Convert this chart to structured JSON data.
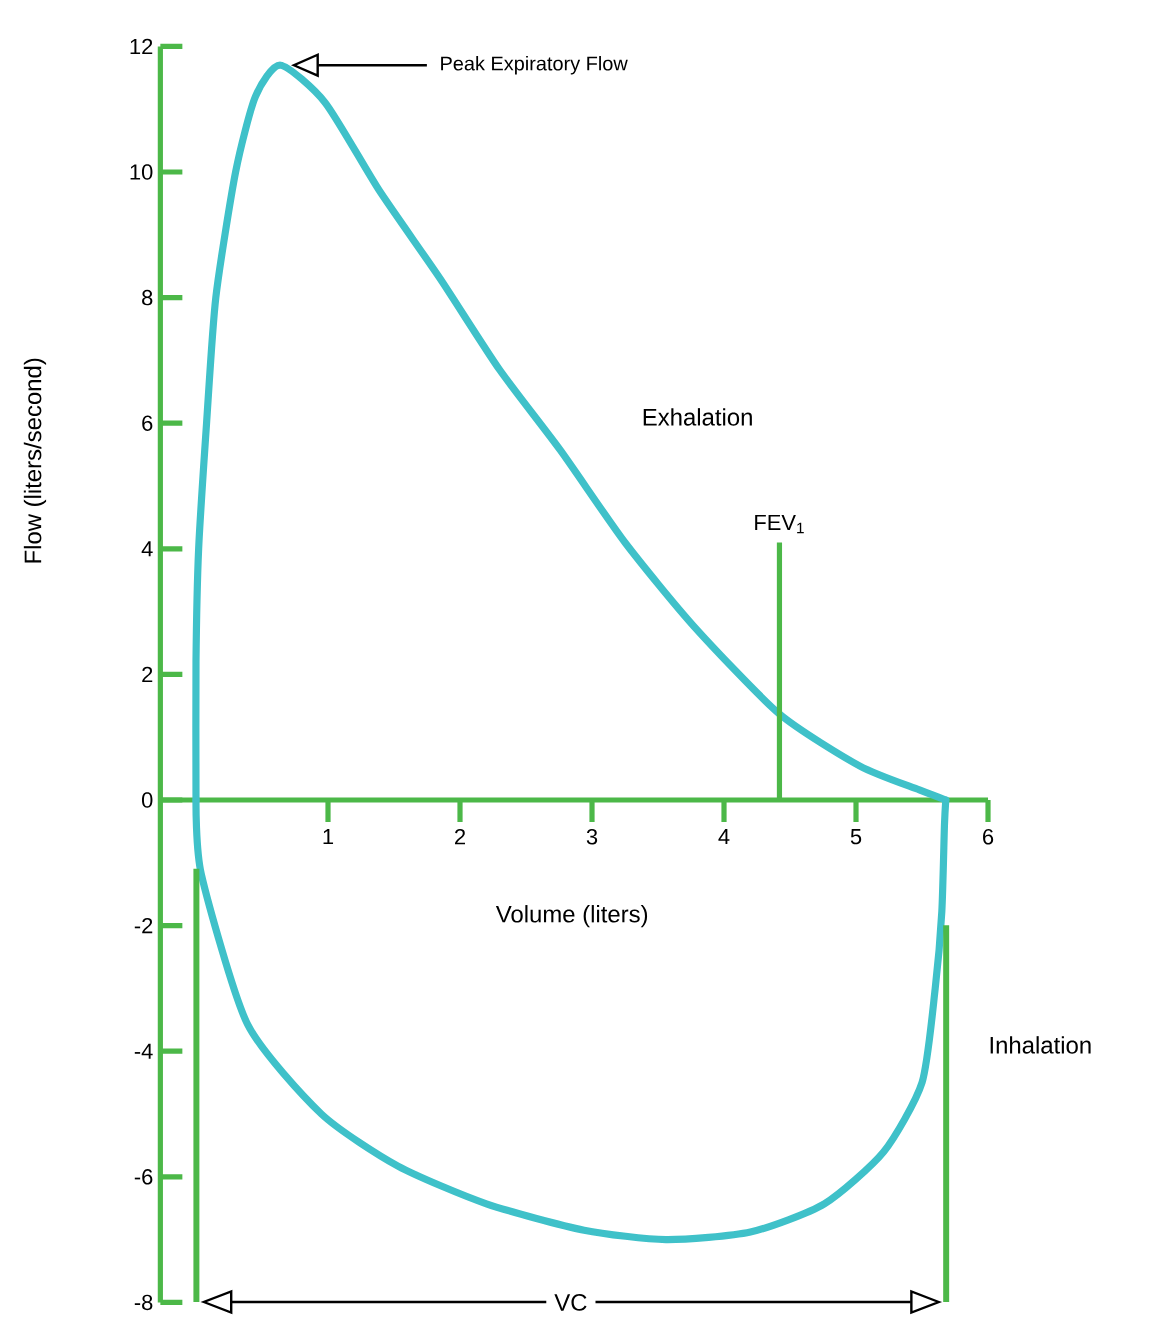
{
  "chart_data": {
    "type": "line",
    "xlabel": "Volume (liters)",
    "ylabel": "Flow (liters/second)",
    "xlim": [
      -0.27,
      6
    ],
    "ylim": [
      -8,
      12
    ],
    "xticks": [
      1,
      2,
      3,
      4,
      5,
      6
    ],
    "yticks": [
      -8,
      -6,
      -4,
      -2,
      0,
      2,
      4,
      6,
      8,
      10,
      12
    ],
    "grid": false,
    "marker": "none",
    "line_style": "solid",
    "series": [
      {
        "color": "#3fc1c9",
        "x": [
          0,
          0,
          0.02,
          0.08,
          0.15,
          0.3,
          0.45,
          0.64,
          0.98,
          1.39,
          1.85,
          2.3,
          2.76,
          3.25,
          3.77,
          4.42,
          5.03,
          5.48,
          5.68
        ],
        "values": [
          0,
          2.2,
          4,
          6,
          8,
          10,
          11.2,
          11.7,
          11.1,
          9.7,
          8.3,
          6.85,
          5.57,
          4.1,
          2.77,
          1.37,
          0.54,
          0.16,
          0
        ]
      },
      {
        "color": "#3fc1c9",
        "x": [
          0,
          0.04,
          0.39,
          0.95,
          1.53,
          2.2,
          2.94,
          3.56,
          4.2,
          4.76,
          5.21,
          5.5,
          5.6,
          5.65,
          5.67,
          5.68
        ],
        "values": [
          0,
          -1.18,
          -3.57,
          -5.0,
          -5.83,
          -6.43,
          -6.85,
          -7.0,
          -6.88,
          -6.43,
          -5.6,
          -4.5,
          -3.0,
          -1.78,
          -0.4,
          0
        ]
      }
    ],
    "ref_lines": [
      {
        "axis": "x",
        "value": 4.42,
        "label": "FEV$_{1}$",
        "color": "#4cb848"
      }
    ],
    "annotations": [
      "Exhalation",
      "Peak Expiratory Flow",
      "Inhalation",
      "VC"
    ]
  }
}
